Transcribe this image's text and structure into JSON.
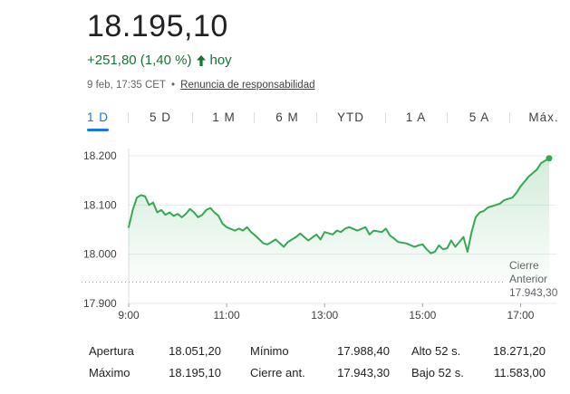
{
  "quote": {
    "price": "18.195,10",
    "change": "+251,80 (1,40 %)",
    "period": "hoy",
    "timestamp": "9 feb, 17:35 CET",
    "separator": "•",
    "disclaimer": "Renuncia de responsabilidad"
  },
  "tabs": [
    {
      "label": "1 D",
      "active": true
    },
    {
      "label": "5 D",
      "active": false
    },
    {
      "label": "1 M",
      "active": false
    },
    {
      "label": "6 M",
      "active": false
    },
    {
      "label": "YTD",
      "active": false
    },
    {
      "label": "1 A",
      "active": false
    },
    {
      "label": "5 A",
      "active": false
    },
    {
      "label": "Máx.",
      "active": false
    }
  ],
  "colors": {
    "positive": "#137333",
    "line": "#34a853",
    "accent": "#1a73e8",
    "reference": "#80868b"
  },
  "chart_data": {
    "type": "area",
    "ylim": [
      17900,
      18200
    ],
    "yticks": [
      {
        "value": 18200,
        "label": "18.200"
      },
      {
        "value": 18100,
        "label": "18.100"
      },
      {
        "value": 18000,
        "label": "18.000"
      },
      {
        "value": 17900,
        "label": "17.900"
      }
    ],
    "xlim": [
      "9:00",
      "17:45"
    ],
    "xticks": [
      "9:00",
      "11:00",
      "13:00",
      "15:00",
      "17:00"
    ],
    "reference": {
      "value": 17943.3,
      "label_lines": [
        "Cierre",
        "Anterior",
        "17.943,30"
      ]
    },
    "series": [
      {
        "x": [
          "9:00",
          "9:05",
          "9:10",
          "9:15",
          "9:20",
          "9:25",
          "9:30",
          "9:35",
          "9:40",
          "9:45",
          "9:50",
          "9:55",
          "10:00",
          "10:05",
          "10:10",
          "10:15",
          "10:20",
          "10:25",
          "10:30",
          "10:35",
          "10:40",
          "10:45",
          "10:50",
          "10:55",
          "11:00",
          "11:10",
          "11:15",
          "11:20",
          "11:25",
          "11:30",
          "11:35",
          "11:40",
          "11:45",
          "11:50",
          "12:00",
          "12:10",
          "12:15",
          "12:20",
          "12:25",
          "12:30",
          "12:40",
          "12:50",
          "12:55",
          "13:00",
          "13:10",
          "13:15",
          "13:20",
          "13:25",
          "13:30",
          "13:40",
          "13:50",
          "13:55",
          "14:00",
          "14:10",
          "14:15",
          "14:20",
          "14:25",
          "14:30",
          "14:40",
          "14:50",
          "14:55",
          "15:00",
          "15:05",
          "15:10",
          "15:15",
          "15:20",
          "15:25",
          "15:30",
          "15:35",
          "15:40",
          "15:45",
          "15:50",
          "15:55",
          "16:00",
          "16:05",
          "16:10",
          "16:15",
          "16:20",
          "16:30",
          "16:35",
          "16:40",
          "16:50",
          "16:55",
          "17:00",
          "17:05",
          "17:10",
          "17:15",
          "17:20",
          "17:25",
          "17:30",
          "17:35"
        ],
        "y": [
          18055,
          18090,
          18115,
          18120,
          18118,
          18100,
          18105,
          18085,
          18090,
          18080,
          18085,
          18078,
          18082,
          18075,
          18082,
          18092,
          18085,
          18075,
          18080,
          18090,
          18094,
          18085,
          18078,
          18062,
          18055,
          18048,
          18052,
          18048,
          18055,
          18045,
          18038,
          18030,
          18022,
          18020,
          18030,
          18015,
          18025,
          18030,
          18035,
          18042,
          18028,
          18040,
          18030,
          18045,
          18040,
          18048,
          18045,
          18052,
          18055,
          18048,
          18055,
          18040,
          18048,
          18045,
          18052,
          18038,
          18032,
          18025,
          18022,
          18015,
          18018,
          18020,
          18010,
          18002,
          18005,
          18018,
          18010,
          18012,
          18028,
          18015,
          18025,
          18035,
          18005,
          18045,
          18075,
          18085,
          18088,
          18095,
          18100,
          18103,
          18110,
          18115,
          18125,
          18138,
          18148,
          18158,
          18165,
          18172,
          18185,
          18190,
          18195
        ]
      }
    ]
  },
  "stats": [
    {
      "label": "Apertura",
      "value": "18.051,20"
    },
    {
      "label": "Mínimo",
      "value": "17.988,40"
    },
    {
      "label": "Alto 52 s.",
      "value": "18.271,20"
    },
    {
      "label": "Máximo",
      "value": "18.195,10"
    },
    {
      "label": "Cierre ant.",
      "value": "17.943,30"
    },
    {
      "label": "Bajo 52 s.",
      "value": "11.583,00"
    }
  ]
}
